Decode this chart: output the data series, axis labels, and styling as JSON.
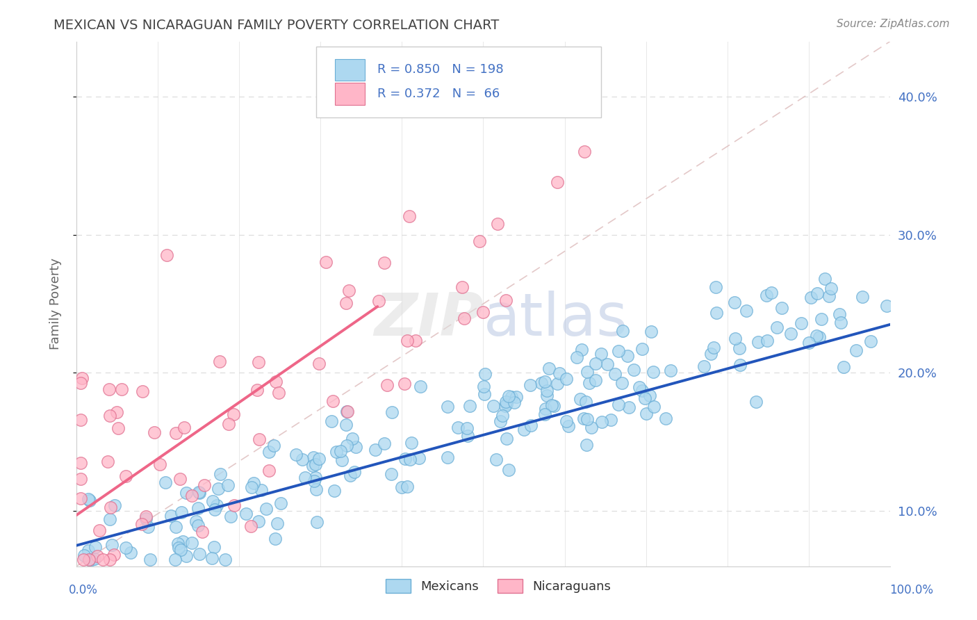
{
  "title": "MEXICAN VS NICARAGUAN FAMILY POVERTY CORRELATION CHART",
  "source": "Source: ZipAtlas.com",
  "ylabel": "Family Poverty",
  "y_ticks": [
    0.1,
    0.2,
    0.3,
    0.4
  ],
  "y_tick_labels": [
    "10.0%",
    "20.0%",
    "30.0%",
    "40.0%"
  ],
  "xlim": [
    0.0,
    1.0
  ],
  "ylim": [
    0.06,
    0.44
  ],
  "mexican_color": "#ADD8F0",
  "mexican_edge": "#6aaed6",
  "nicaraguan_color": "#FFB6C8",
  "nicaraguan_edge": "#e07090",
  "mexican_line_color": "#2255BB",
  "nicaraguan_line_color": "#EE6688",
  "ref_line_color": "#DDBBBB",
  "R_mexican": 0.85,
  "N_mexican": 198,
  "R_nicaraguan": 0.372,
  "N_nicaraguan": 66,
  "legend_text_color": "#4472C4",
  "value_text_color": "#333333",
  "watermark": "ZIPatlas",
  "background_color": "#FFFFFF",
  "grid_color": "#DDDDDD",
  "title_color": "#555555"
}
